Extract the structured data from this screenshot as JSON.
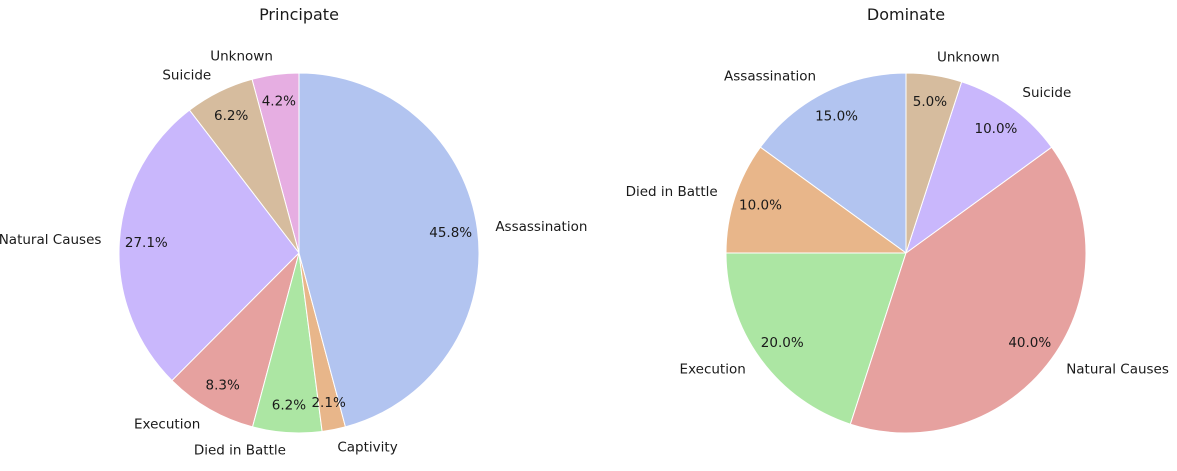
{
  "chart_data": [
    {
      "type": "pie",
      "title": "Principate",
      "start_angle_deg": 90,
      "direction": "counterclockwise",
      "slices": [
        {
          "label": "Unknown",
          "percent": 4.2,
          "color": "#e6aee2"
        },
        {
          "label": "Suicide",
          "percent": 6.2,
          "color": "#d6bc9e"
        },
        {
          "label": "Natural Causes",
          "percent": 27.1,
          "color": "#c9b7fc"
        },
        {
          "label": "Execution",
          "percent": 8.3,
          "color": "#e6a19f"
        },
        {
          "label": "Died in Battle",
          "percent": 6.2,
          "color": "#ace6a3"
        },
        {
          "label": "Captivity",
          "percent": 2.1,
          "color": "#e8b68a"
        },
        {
          "label": "Assassination",
          "percent": 45.8,
          "color": "#b2c4f0"
        }
      ]
    },
    {
      "type": "pie",
      "title": "Dominate",
      "start_angle_deg": 90,
      "direction": "counterclockwise",
      "slices": [
        {
          "label": "Assassination",
          "percent": 15.0,
          "color": "#b2c4f0"
        },
        {
          "label": "Died in Battle",
          "percent": 10.0,
          "color": "#e8b68a"
        },
        {
          "label": "Execution",
          "percent": 20.0,
          "color": "#ace6a3"
        },
        {
          "label": "Natural Causes",
          "percent": 40.0,
          "color": "#e6a19f"
        },
        {
          "label": "Suicide",
          "percent": 10.0,
          "color": "#c9b7fc"
        },
        {
          "label": "Unknown",
          "percent": 5.0,
          "color": "#d6bc9e"
        }
      ]
    }
  ]
}
